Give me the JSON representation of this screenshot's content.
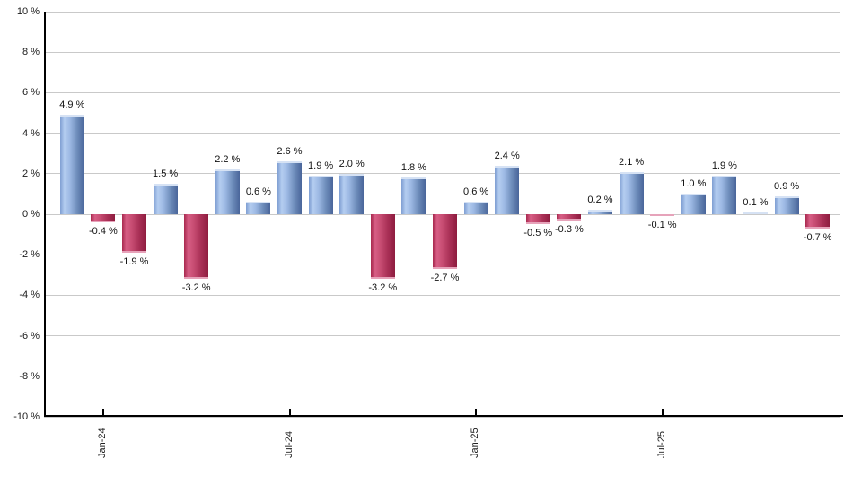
{
  "chart_data": {
    "type": "bar",
    "title": "",
    "unit": "%",
    "values": [
      4.9,
      -0.4,
      -1.9,
      1.5,
      -3.2,
      2.2,
      0.6,
      2.6,
      1.9,
      2.0,
      -3.2,
      1.8,
      -2.7,
      0.6,
      2.4,
      -0.5,
      -0.3,
      0.2,
      2.1,
      -0.1,
      1.0,
      1.9,
      0.1,
      0.9,
      -0.7
    ],
    "bar_labels": [
      "4.9 %",
      "-0.4 %",
      "-1.9 %",
      "1.5 %",
      "-3.2 %",
      "2.2 %",
      "0.6 %",
      "2.6 %",
      "1.9 %",
      "2.0 %",
      "-3.2 %",
      "1.8 %",
      "-2.7 %",
      "0.6 %",
      "2.4 %",
      "-0.5 %",
      "-0.3 %",
      "0.2 %",
      "2.1 %",
      "-0.1 %",
      "1.0 %",
      "1.9 %",
      "0.1 %",
      "0.9 %",
      "-0.7 %"
    ],
    "x_ticks": [
      {
        "label": "Jan-24",
        "bar_index": 1
      },
      {
        "label": "Jul-24",
        "bar_index": 7
      },
      {
        "label": "Jan-25",
        "bar_index": 13
      },
      {
        "label": "Jul-25",
        "bar_index": 19
      }
    ],
    "y_ticks": [
      {
        "label": "10 %",
        "value": 10
      },
      {
        "label": "8 %",
        "value": 8
      },
      {
        "label": "6 %",
        "value": 6
      },
      {
        "label": "4 %",
        "value": 4
      },
      {
        "label": "2 %",
        "value": 2
      },
      {
        "label": "0 %",
        "value": 0
      },
      {
        "label": "-2 %",
        "value": -2
      },
      {
        "label": "-4 %",
        "value": -4
      },
      {
        "label": "-6 %",
        "value": -6
      },
      {
        "label": "-8 %",
        "value": -8
      },
      {
        "label": "-10 %",
        "value": -10
      }
    ],
    "ylim": [
      -10,
      10
    ],
    "grid": true,
    "legend": false,
    "colors": {
      "positive_bar_light": "#b4cdf0",
      "positive_bar_dark": "#49659a",
      "negative_bar_light": "#d75e85",
      "negative_bar_dark": "#8e1c3f",
      "grid_line": "#c9c9c9",
      "axis_line": "#000000",
      "label_text": "#111111",
      "background": "#ffffff"
    }
  }
}
